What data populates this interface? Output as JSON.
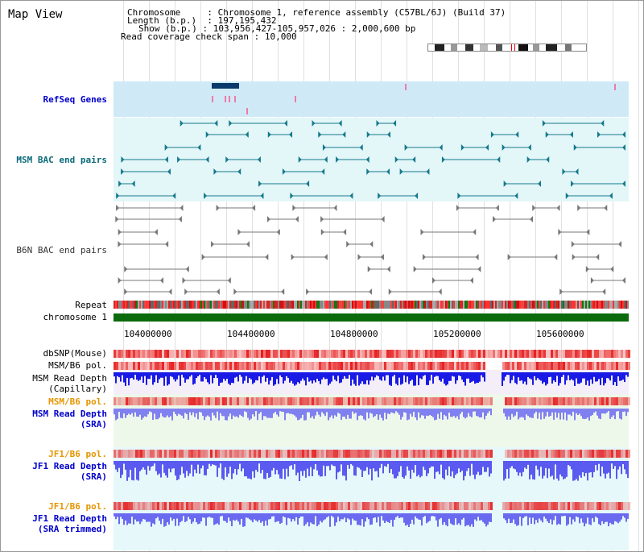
{
  "map_view_title": "Map View",
  "info": {
    "chromosome_label": "Chromosome",
    "chromosome_value": "Chromosome 1, reference assembly (C57BL/6J) (Build 37)",
    "length_label": "Length (b.p.)",
    "length_value": "197,195,432",
    "show_label": "Show (b.p.)",
    "show_value": "103,956,427-105,957,026 : 2,000,600 bp",
    "coverage_label": "Read coverage check span",
    "coverage_value": "10,000"
  },
  "tracks": {
    "refseq": "RefSeq Genes",
    "msm_bac": "MSM BAC end pairs",
    "b6n_bac": "B6N BAC end pairs",
    "repeat": "Repeat",
    "chromosome": "chromosome 1",
    "dbsnp": "dbSNP(Mouse)",
    "msm_b6_pol_1": "MSM/B6 pol.",
    "msm_read_depth_cap_1": "MSM Read Depth",
    "msm_read_depth_cap_2": "(Capillary)",
    "msm_b6_pol_2": "MSM/B6 pol.",
    "msm_read_depth_sra_1": "MSM Read Depth",
    "msm_read_depth_sra_2": "(SRA)",
    "jf1_b6_pol_1": "JF1/B6 pol.",
    "jf1_read_depth_sra_1": "JF1 Read Depth",
    "jf1_read_depth_sra_2": "(SRA)",
    "jf1_b6_pol_2": "JF1/B6 pol.",
    "jf1_read_depth_trim_1": "JF1 Read Depth",
    "jf1_read_depth_trim_2": "(SRA trimmed)"
  },
  "axis": {
    "ticks": [
      "104000000",
      "104400000",
      "104800000",
      "105200000",
      "105600000"
    ]
  },
  "colors": {
    "refseq_band": "#cfeaf6",
    "msm_band": "#e3f6f8",
    "msm_feature": "#157a8c",
    "b6n_feature": "#777777",
    "chrom_bar": "#0b6a0b",
    "snp_red": "#ee2222",
    "depth_blue": "#1a1ae6",
    "depth_light": "#7a7aee",
    "label_blue": "#0000cc",
    "label_orange": "#e69500",
    "label_teal": "#0a6a7a",
    "msm_bg": "#f0f7ff",
    "msm_sra_bg": "#eef8ea",
    "jf1_bg": "#e6f8fa"
  }
}
